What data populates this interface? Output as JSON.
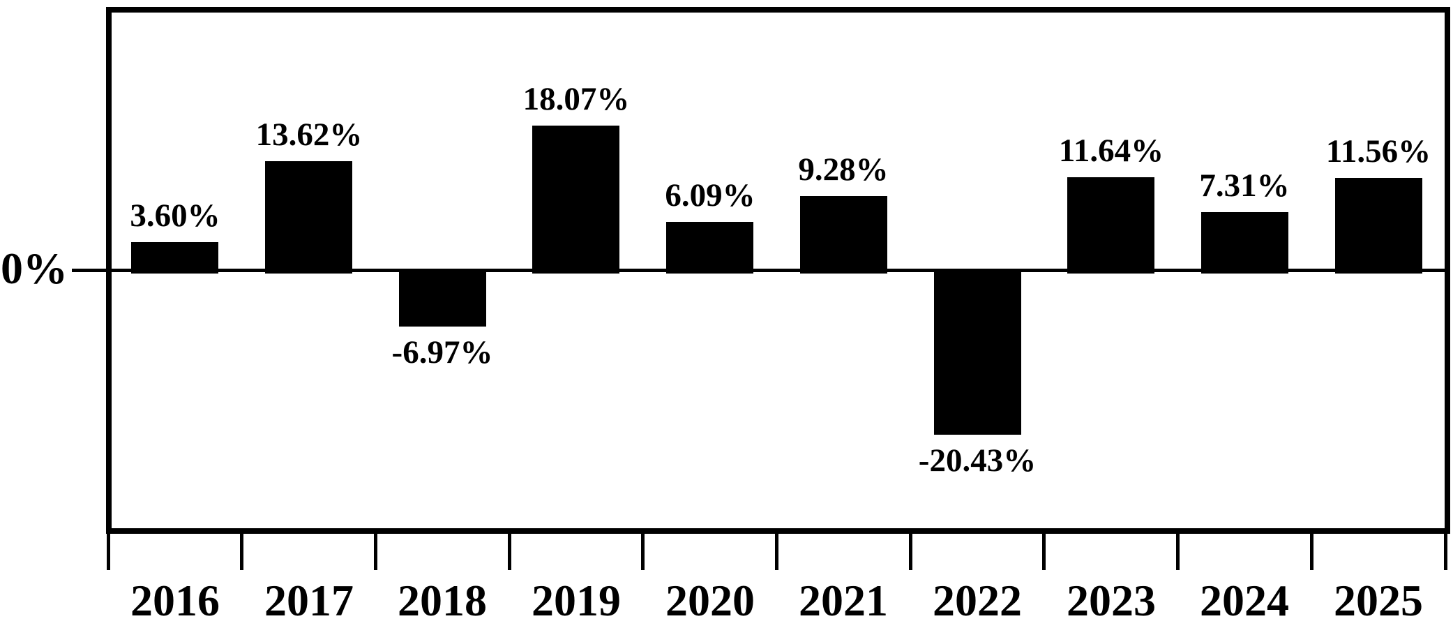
{
  "chart_data": {
    "type": "bar",
    "title": "",
    "categories": [
      "2016",
      "2017",
      "2018",
      "2019",
      "2020",
      "2021",
      "2022",
      "2023",
      "2024",
      "2025"
    ],
    "values": [
      3.6,
      13.62,
      -6.97,
      18.07,
      6.09,
      9.28,
      -20.43,
      11.64,
      7.31,
      11.56
    ],
    "data_labels": [
      "3.60%",
      "13.62%",
      "-6.97%",
      "18.07%",
      "6.09%",
      "9.28%",
      "-20.43%",
      "11.64%",
      "7.31%",
      "11.56%"
    ],
    "xlabel": "",
    "ylabel": "",
    "y_axis": {
      "zero_label": "0%"
    },
    "ylim": [
      -25,
      22
    ],
    "grid": false,
    "legend": "none",
    "bar_color": "#000000",
    "axis_color": "#000000",
    "background_color": "#ffffff"
  }
}
